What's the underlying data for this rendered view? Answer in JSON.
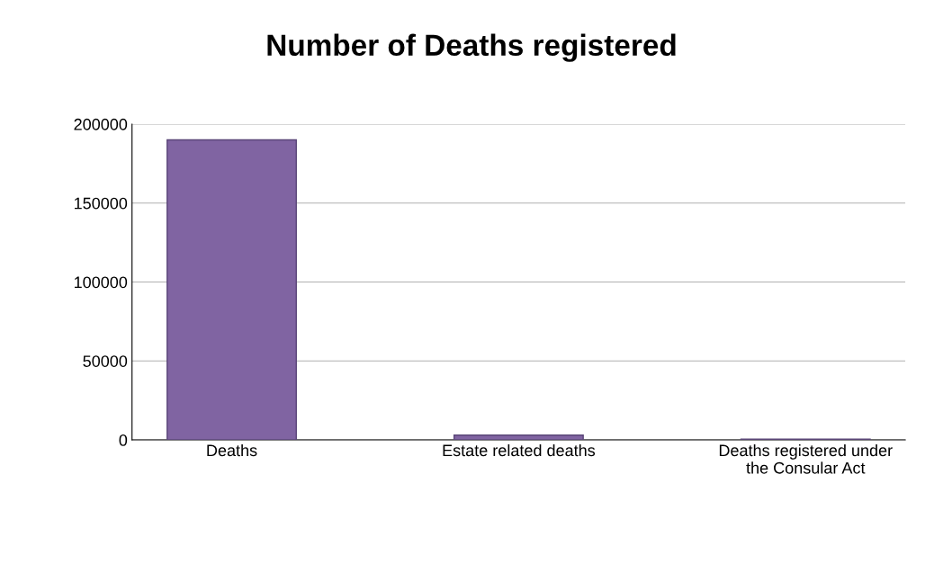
{
  "chart_data": {
    "type": "bar",
    "title": "Number of Deaths registered",
    "categories": [
      "Deaths",
      "Estate related deaths",
      "Deaths registered under the Consular Act"
    ],
    "values": [
      190000,
      3000,
      500
    ],
    "color": "#8064a2",
    "ylim": [
      0,
      200000
    ],
    "yticks": [
      0,
      50000,
      100000,
      150000,
      200000
    ],
    "grid": "y"
  }
}
